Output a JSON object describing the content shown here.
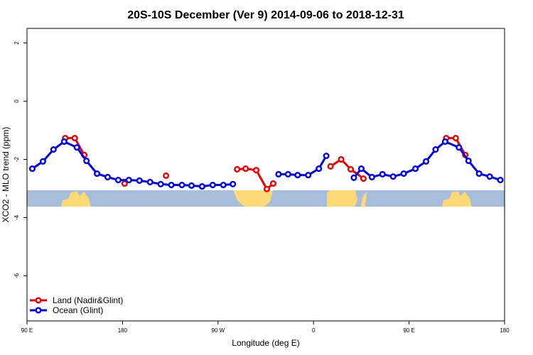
{
  "chart_data": {
    "type": "line",
    "title": "20S-10S December (Ver 9)   2014-09-06 to 2018-12-31",
    "x_label": "Longitude (deg E)",
    "y_label": "XCO2 - MLO trend (ppm)",
    "xlim": [
      90,
      540
    ],
    "xticks": [
      {
        "value": 90,
        "label": "90 E"
      },
      {
        "value": 180,
        "label": "180"
      },
      {
        "value": 270,
        "label": "90 W"
      },
      {
        "value": 360,
        "label": "0"
      },
      {
        "value": 450,
        "label": "90 E"
      },
      {
        "value": 540,
        "label": "180"
      }
    ],
    "ylim": [
      -7.55,
      2.5
    ],
    "yticks": [
      2,
      0,
      -2,
      -4,
      -6
    ],
    "grid": false,
    "legend": "bottom-left",
    "series": [
      {
        "name": "Land (Nadir&Glint)",
        "color": "#ee0000",
        "x": [
          126,
          135,
          144,
          null,
          182,
          null,
          221,
          null,
          288,
          296,
          306,
          316,
          322,
          null,
          376,
          386,
          395,
          407,
          null,
          485,
          494,
          503
        ],
        "values": [
          -1.27,
          -1.27,
          -1.85,
          null,
          -2.83,
          null,
          -2.56,
          null,
          -2.34,
          -2.32,
          -2.37,
          -3.02,
          -2.83,
          null,
          -2.24,
          -2.0,
          -2.34,
          -2.66,
          null,
          -1.27,
          -1.27,
          -1.85
        ]
      },
      {
        "name": "Ocean (Glint)",
        "color": "#0000ee",
        "x": [
          95,
          105,
          115,
          125,
          137,
          146,
          156,
          166,
          176,
          186,
          196,
          206,
          216,
          226,
          236,
          245,
          255,
          265,
          275,
          284,
          null,
          327,
          336,
          345,
          355,
          365,
          372,
          null,
          398,
          405,
          415,
          425,
          435,
          445,
          456,
          466,
          475,
          484,
          497,
          506,
          516,
          526,
          536
        ],
        "values": [
          -2.32,
          -2.07,
          -1.66,
          -1.39,
          -1.59,
          -2.05,
          -2.49,
          -2.61,
          -2.71,
          -2.71,
          -2.73,
          -2.78,
          -2.85,
          -2.88,
          -2.88,
          -2.9,
          -2.93,
          -2.88,
          -2.88,
          -2.85,
          null,
          -2.51,
          -2.51,
          -2.54,
          -2.54,
          -2.32,
          -1.88,
          null,
          -2.63,
          -2.32,
          -2.61,
          -2.51,
          -2.59,
          -2.49,
          -2.32,
          -2.07,
          -1.66,
          -1.39,
          -1.59,
          -2.05,
          -2.49,
          -2.59,
          -2.71
        ]
      }
    ]
  }
}
